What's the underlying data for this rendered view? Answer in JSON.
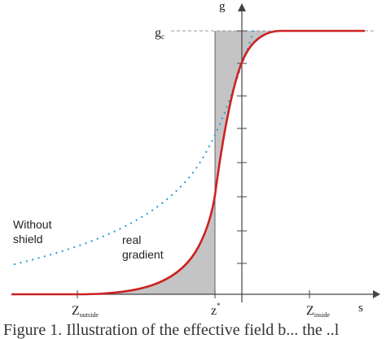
{
  "diagram": {
    "axis_y_label": "g",
    "axis_x_label": "s",
    "level_label": "g",
    "level_label_sub": "c",
    "z_outside_main": "Z",
    "z_outside_sub": "outside",
    "z_star_main": "z",
    "z_star_sup": "*",
    "z_inside_main": "Z",
    "z_inside_sub": "inside",
    "without_shield_line1": "Without",
    "without_shield_line2": "shield",
    "real_gradient_line1": "real",
    "real_gradient_line2": "gradient",
    "colors": {
      "real_gradient_curve": "#cc2222",
      "without_shield_curve": "#2a9fd8",
      "shaded_region": "#c4c4c4",
      "axes": "#444444"
    }
  },
  "caption": {
    "text": "Figure 1. Illustration of the effective field b... the ..l"
  }
}
